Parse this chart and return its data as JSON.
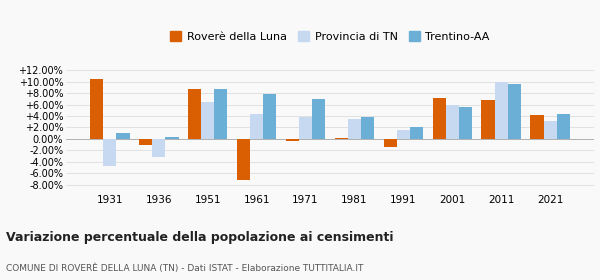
{
  "years": [
    1931,
    1936,
    1951,
    1961,
    1971,
    1981,
    1991,
    2001,
    2011,
    2021
  ],
  "rovere": [
    10.5,
    -1.0,
    8.7,
    -7.2,
    -0.3,
    0.2,
    -1.5,
    7.2,
    6.8,
    4.1
  ],
  "provincia": [
    -4.8,
    -3.2,
    6.5,
    4.4,
    3.8,
    3.5,
    1.6,
    6.0,
    10.0,
    3.2
  ],
  "trentino": [
    1.0,
    0.4,
    8.8,
    7.8,
    7.0,
    3.8,
    2.0,
    5.5,
    9.5,
    4.3
  ],
  "color_rovere": "#d95f02",
  "color_provincia": "#c6d9f0",
  "color_trentino": "#6baed6",
  "title": "Variazione percentuale della popolazione ai censimenti",
  "subtitle": "COMUNE DI ROVERÈ DELLA LUNA (TN) - Dati ISTAT - Elaborazione TUTTITALIA.IT",
  "legend_labels": [
    "Roverè della Luna",
    "Provincia di TN",
    "Trentino-AA"
  ],
  "ylim": [
    -9.0,
    13.5
  ],
  "yticks": [
    -8,
    -6,
    -4,
    -2,
    0,
    2,
    4,
    6,
    8,
    10,
    12
  ],
  "background_color": "#f9f9f9",
  "bar_width": 0.27
}
